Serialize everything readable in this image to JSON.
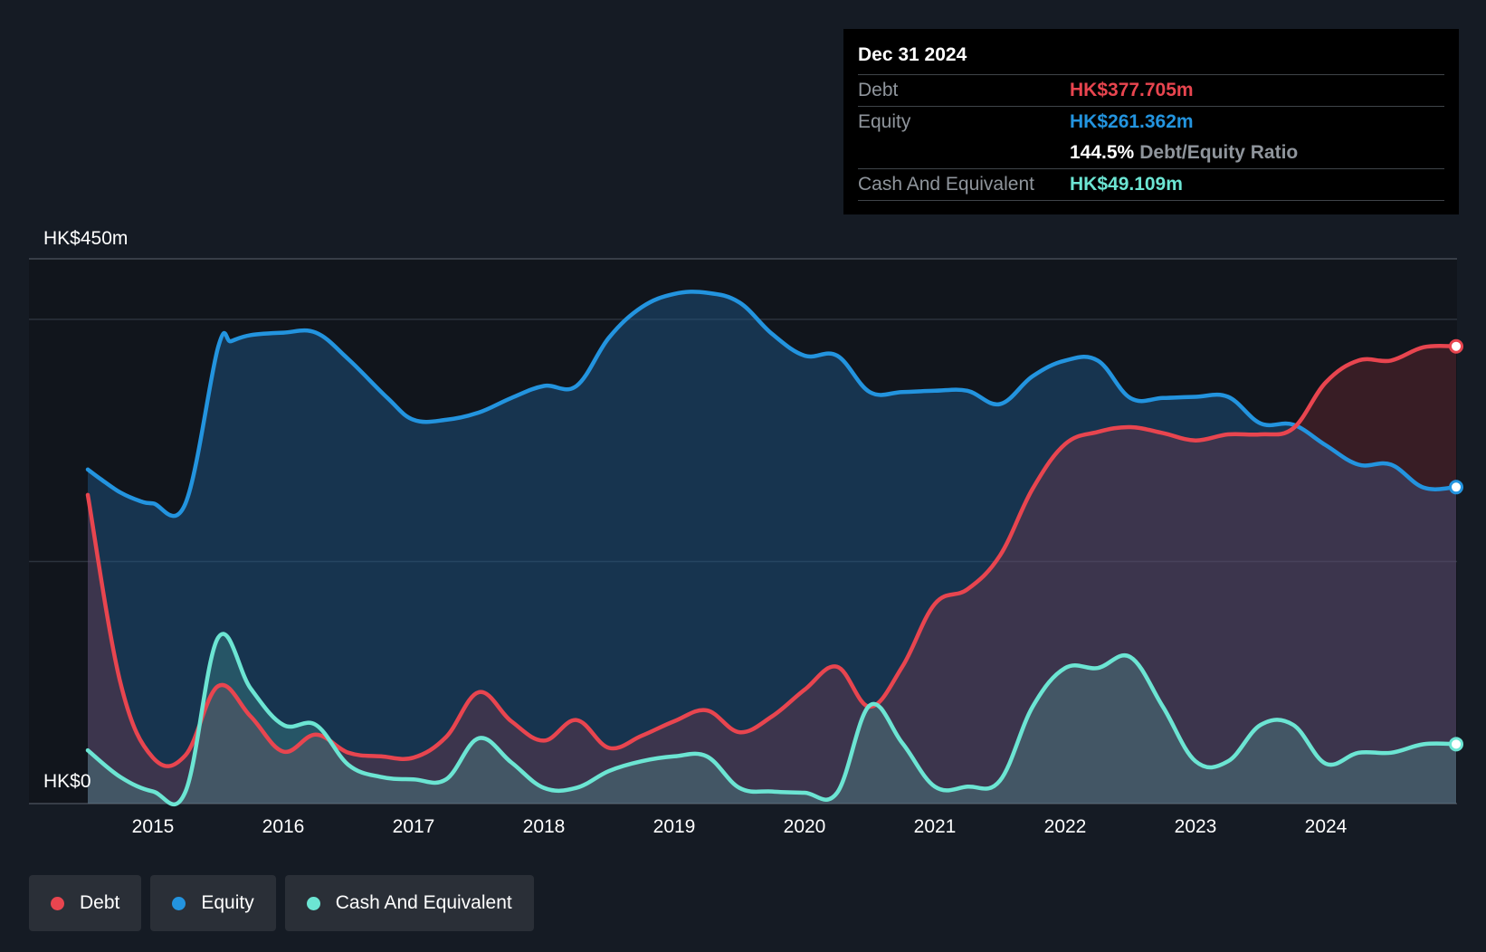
{
  "tooltip": {
    "date": "Dec 31 2024",
    "rows": [
      {
        "label": "Debt",
        "value": "HK$377.705m",
        "color": "#e8454f"
      },
      {
        "label": "Equity",
        "value": "HK$261.362m",
        "color": "#2394df"
      },
      {
        "label": "",
        "value": "144.5%",
        "extra": "Debt/Equity Ratio"
      },
      {
        "label": "Cash And Equivalent",
        "value": "HK$49.109m",
        "color": "#6ce5d3"
      }
    ]
  },
  "legend": [
    {
      "label": "Debt",
      "color": "#e8454f"
    },
    {
      "label": "Equity",
      "color": "#2394df"
    },
    {
      "label": "Cash And Equivalent",
      "color": "#6ce5d3"
    }
  ],
  "chart_data": {
    "type": "area",
    "ylim": [
      0,
      450
    ],
    "y_top_label": "HK$450m",
    "y_bottom_label": "HK$0",
    "x_ticks": [
      "2015",
      "2016",
      "2017",
      "2018",
      "2019",
      "2020",
      "2021",
      "2022",
      "2023",
      "2024"
    ],
    "x_tick_values": [
      2015,
      2016,
      2017,
      2018,
      2019,
      2020,
      2021,
      2022,
      2023,
      2024
    ],
    "xlim": [
      2014.55,
      2025.0
    ],
    "grid": true,
    "legend_position": "bottom-left",
    "series": [
      {
        "name": "Equity",
        "color": "#2394df",
        "points": [
          [
            2014.5,
            276
          ],
          [
            2014.6,
            268
          ],
          [
            2014.75,
            257
          ],
          [
            2014.9,
            250
          ],
          [
            2015.0,
            248
          ],
          [
            2015.25,
            248
          ],
          [
            2015.5,
            377
          ],
          [
            2015.6,
            382
          ],
          [
            2015.75,
            387
          ],
          [
            2016.0,
            389
          ],
          [
            2016.25,
            389
          ],
          [
            2016.5,
            367
          ],
          [
            2016.8,
            335
          ],
          [
            2017.0,
            317
          ],
          [
            2017.25,
            317
          ],
          [
            2017.5,
            323
          ],
          [
            2017.75,
            335
          ],
          [
            2018.0,
            345
          ],
          [
            2018.25,
            345
          ],
          [
            2018.5,
            385
          ],
          [
            2018.75,
            410
          ],
          [
            2019.0,
            421
          ],
          [
            2019.25,
            422
          ],
          [
            2019.5,
            414
          ],
          [
            2019.75,
            388
          ],
          [
            2020.0,
            370
          ],
          [
            2020.25,
            370
          ],
          [
            2020.5,
            340
          ],
          [
            2020.75,
            340
          ],
          [
            2021.0,
            341
          ],
          [
            2021.25,
            341
          ],
          [
            2021.5,
            330
          ],
          [
            2021.75,
            353
          ],
          [
            2022.0,
            366
          ],
          [
            2022.25,
            366
          ],
          [
            2022.5,
            335
          ],
          [
            2022.75,
            335
          ],
          [
            2023.0,
            336
          ],
          [
            2023.25,
            336
          ],
          [
            2023.5,
            314
          ],
          [
            2023.75,
            313
          ],
          [
            2024.0,
            296
          ],
          [
            2024.25,
            280
          ],
          [
            2024.5,
            280
          ],
          [
            2024.75,
            261
          ],
          [
            2025.0,
            261.4
          ]
        ]
      },
      {
        "name": "Debt",
        "color": "#e8454f",
        "points": [
          [
            2014.5,
            255
          ],
          [
            2014.75,
            100
          ],
          [
            2015.0,
            38
          ],
          [
            2015.25,
            40
          ],
          [
            2015.5,
            97
          ],
          [
            2015.75,
            72
          ],
          [
            2016.0,
            43
          ],
          [
            2016.25,
            57
          ],
          [
            2016.5,
            42
          ],
          [
            2016.75,
            39
          ],
          [
            2017.0,
            38
          ],
          [
            2017.25,
            55
          ],
          [
            2017.5,
            92
          ],
          [
            2017.75,
            68
          ],
          [
            2018.0,
            52
          ],
          [
            2018.25,
            69
          ],
          [
            2018.5,
            46
          ],
          [
            2018.75,
            56
          ],
          [
            2019.0,
            68
          ],
          [
            2019.25,
            77
          ],
          [
            2019.5,
            59
          ],
          [
            2019.75,
            72
          ],
          [
            2020.0,
            94
          ],
          [
            2020.25,
            113
          ],
          [
            2020.5,
            80
          ],
          [
            2020.75,
            113
          ],
          [
            2021.0,
            165
          ],
          [
            2021.25,
            177
          ],
          [
            2021.5,
            205
          ],
          [
            2021.75,
            260
          ],
          [
            2022.0,
            297
          ],
          [
            2022.25,
            307
          ],
          [
            2022.5,
            311
          ],
          [
            2022.75,
            306
          ],
          [
            2023.0,
            300
          ],
          [
            2023.25,
            305
          ],
          [
            2023.5,
            305
          ],
          [
            2023.75,
            310
          ],
          [
            2024.0,
            348
          ],
          [
            2024.25,
            366
          ],
          [
            2024.5,
            366
          ],
          [
            2024.75,
            377
          ],
          [
            2025.0,
            377.7
          ]
        ]
      },
      {
        "name": "Cash And Equivalent",
        "color": "#6ce5d3",
        "points": [
          [
            2014.5,
            44
          ],
          [
            2014.75,
            22
          ],
          [
            2015.0,
            10
          ],
          [
            2015.25,
            10
          ],
          [
            2015.5,
            137
          ],
          [
            2015.75,
            95
          ],
          [
            2016.0,
            65
          ],
          [
            2016.25,
            65
          ],
          [
            2016.5,
            32
          ],
          [
            2016.75,
            22
          ],
          [
            2017.0,
            20
          ],
          [
            2017.25,
            20
          ],
          [
            2017.5,
            54
          ],
          [
            2017.75,
            34
          ],
          [
            2018.0,
            13
          ],
          [
            2018.25,
            13
          ],
          [
            2018.5,
            27
          ],
          [
            2018.75,
            35
          ],
          [
            2019.0,
            39
          ],
          [
            2019.25,
            39
          ],
          [
            2019.5,
            13
          ],
          [
            2019.75,
            10
          ],
          [
            2020.0,
            9
          ],
          [
            2020.25,
            9
          ],
          [
            2020.5,
            81
          ],
          [
            2020.75,
            50
          ],
          [
            2021.0,
            14
          ],
          [
            2021.25,
            14
          ],
          [
            2021.5,
            19
          ],
          [
            2021.75,
            80
          ],
          [
            2022.0,
            112
          ],
          [
            2022.25,
            112
          ],
          [
            2022.5,
            121
          ],
          [
            2022.75,
            80
          ],
          [
            2023.0,
            35
          ],
          [
            2023.25,
            35
          ],
          [
            2023.5,
            65
          ],
          [
            2023.75,
            65
          ],
          [
            2024.0,
            33
          ],
          [
            2024.25,
            42
          ],
          [
            2024.5,
            42
          ],
          [
            2024.75,
            49
          ],
          [
            2025.0,
            49.1
          ]
        ]
      }
    ]
  }
}
